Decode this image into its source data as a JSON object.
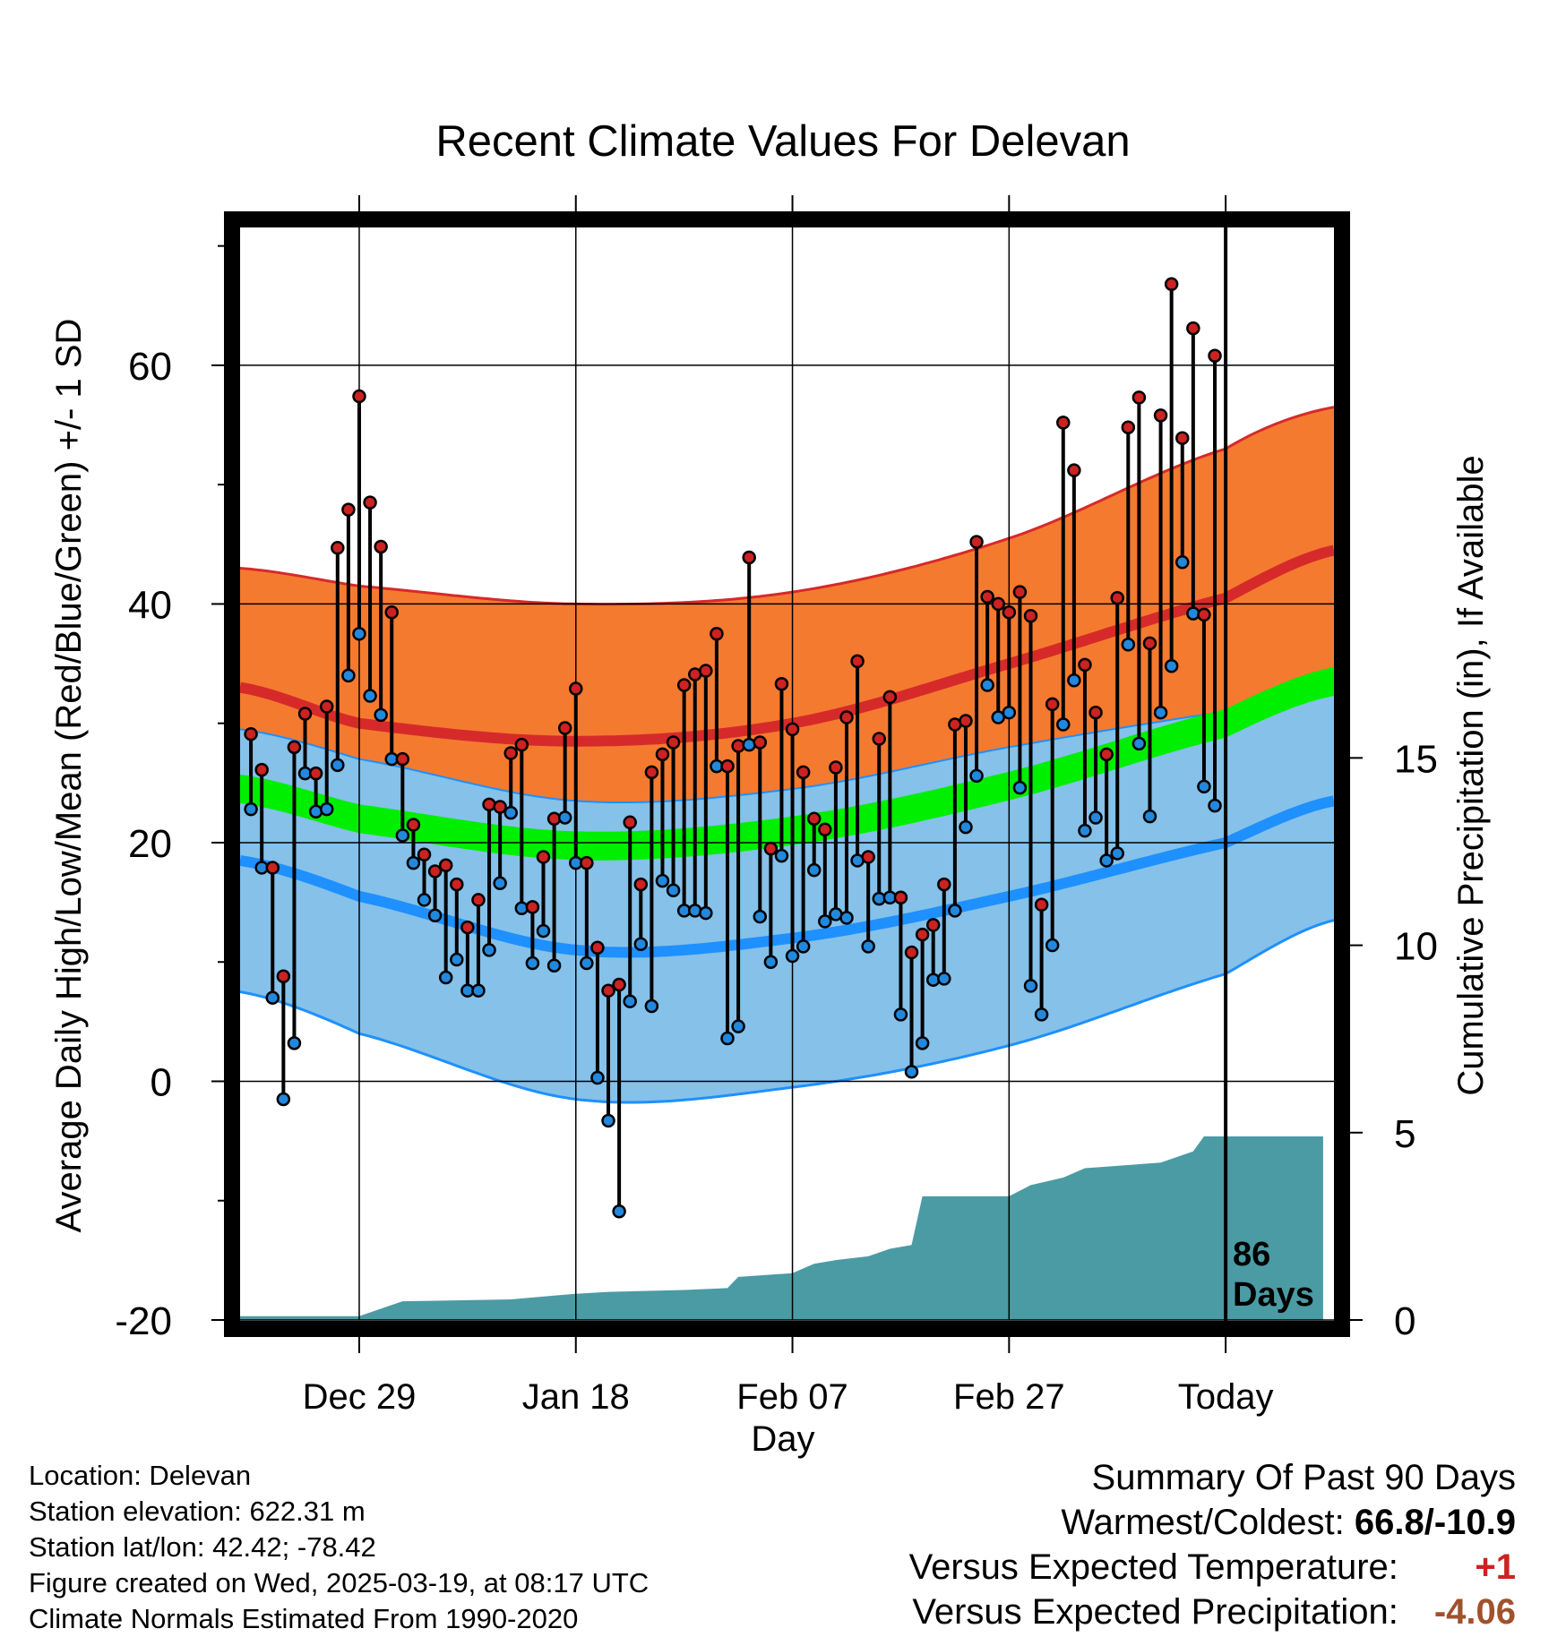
{
  "title": "Recent Climate Values For Delevan",
  "ylabel_left": "Average Daily High/Low/Mean (Red/Blue/Green) +/- 1 SD",
  "ylabel_right": "Cumulative Precipitation (in), If Available",
  "xlabel": "Day",
  "days_label": "86",
  "days_label2": "Days",
  "footer": {
    "location": "Location: Delevan",
    "elevation": "Station elevation: 622.31 m",
    "latlon": "Station lat/lon: 42.42; -78.42",
    "created": "Figure created on Wed, 2025-03-19, at 08:17 UTC",
    "normals": "Climate Normals Estimated From 1990-2020"
  },
  "summary": {
    "heading": "Summary Of Past 90 Days",
    "warmest_coldest_label": "Warmest/Coldest:",
    "warmest_coldest_value": "66.8/-10.9",
    "temp_label": "Versus Expected Temperature:",
    "temp_value": "+1",
    "precip_label": "Versus Expected Precipitation:",
    "precip_value": "-4.06"
  },
  "colors": {
    "high_band": "#f47a30",
    "high_line": "#d62a2a",
    "low_band": "#85c1e9",
    "low_line": "#1e90ff",
    "overlap_band": "#9b0f14",
    "mean_band": "#00ee00",
    "precip_fill": "#4a9ba4",
    "high_point": "#cc2222",
    "low_point": "#2288dd"
  },
  "chart_data": {
    "type": "line",
    "title": "Recent Climate Values For Delevan",
    "xlabel": "Day",
    "ylabel": "Average Daily High/Low/Mean (Red/Blue/Green) +/- 1 SD",
    "y2label": "Cumulative Precipitation (in), If Available",
    "x_ticks": [
      "Dec 29",
      "Jan 18",
      "Feb 07",
      "Feb 27",
      "Today"
    ],
    "x_tick_days": [
      10,
      30,
      50,
      70,
      90
    ],
    "x_range": [
      -1,
      100
    ],
    "ylim": [
      -20,
      72
    ],
    "y_ticks": [
      -20,
      0,
      20,
      40,
      60
    ],
    "y2lim": [
      0,
      29.3
    ],
    "y2_ticks": [
      0,
      5,
      10,
      15
    ],
    "grid": true,
    "normal_days": [
      -1,
      10,
      30,
      50,
      70,
      90,
      100
    ],
    "normal_high": [
      33,
      30,
      28.5,
      30,
      35,
      40.5,
      44.5
    ],
    "normal_high_sd": [
      10,
      11.5,
      11.5,
      11,
      10.5,
      12.5,
      12
    ],
    "normal_low": [
      18.5,
      15.5,
      11,
      12,
      15.5,
      20,
      23.5
    ],
    "normal_low_sd": [
      11,
      11.5,
      12.5,
      12.5,
      12.5,
      11,
      10
    ],
    "normal_mean": [
      24.5,
      22,
      19.75,
      21,
      24.75,
      30,
      33.5
    ],
    "normal_mean_sd": 1.2,
    "daily_high": [
      29.1,
      26.1,
      17.9,
      8.8,
      28,
      30.8,
      25.8,
      31.4,
      44.7,
      47.9,
      57.4,
      48.5,
      44.8,
      39.3,
      27.0,
      21.5,
      19.0,
      17.6,
      18.1,
      16.5,
      12.9,
      15.2,
      23.2,
      23.0,
      27.5,
      28.2,
      14.6,
      18.8,
      22.0,
      29.6,
      32.9,
      18.3,
      11.2,
      7.6,
      8.1,
      21.7,
      16.5,
      25.9,
      27.4,
      28.4,
      33.2,
      34.1,
      34.4,
      37.5,
      26.4,
      28.1,
      43.9,
      28.4,
      19.5,
      33.3,
      29.5,
      25.9,
      22.0,
      21.1,
      26.3,
      30.5,
      35.2,
      18.8,
      28.7,
      32.2,
      15.4,
      10.8,
      12.3,
      13.1,
      16.5,
      29.9,
      30.2,
      45.2,
      40.6,
      40.0,
      39.3,
      41.0,
      39.0,
      14.8,
      31.6,
      55.2,
      51.2,
      34.9,
      30.9,
      27.4,
      40.5,
      54.8,
      57.3,
      36.7,
      55.8,
      66.8,
      53.9,
      63.1,
      39.1,
      60.8
    ],
    "daily_low": [
      22.8,
      17.9,
      7.0,
      -1.5,
      3.2,
      25.8,
      22.6,
      22.8,
      26.5,
      34.0,
      37.5,
      32.3,
      30.7,
      27.0,
      20.6,
      18.3,
      15.2,
      13.9,
      8.7,
      10.2,
      7.6,
      7.6,
      11.0,
      16.6,
      22.5,
      14.5,
      9.9,
      12.6,
      9.7,
      22.1,
      18.3,
      9.9,
      0.3,
      -3.3,
      -10.9,
      6.7,
      11.5,
      6.3,
      16.8,
      16.0,
      14.3,
      14.3,
      14.1,
      26.4,
      3.6,
      4.6,
      28.2,
      13.8,
      10.0,
      18.9,
      10.5,
      11.3,
      17.7,
      13.4,
      14.0,
      13.7,
      18.5,
      11.3,
      15.3,
      15.4,
      5.6,
      0.8,
      3.2,
      8.5,
      8.6,
      14.3,
      21.3,
      25.6,
      33.2,
      30.5,
      30.9,
      24.6,
      8.0,
      5.6,
      11.4,
      29.9,
      33.6,
      21.0,
      22.1,
      18.5,
      19.1,
      36.6,
      28.3,
      22.2,
      30.9,
      34.8,
      43.5,
      39.2,
      24.7,
      23.1
    ],
    "precip_cumulative": [
      [
        -1,
        0.1
      ],
      [
        10,
        0.1
      ],
      [
        12,
        0.3
      ],
      [
        14,
        0.5
      ],
      [
        24,
        0.55
      ],
      [
        30,
        0.7
      ],
      [
        33,
        0.75
      ],
      [
        40,
        0.8
      ],
      [
        44,
        0.85
      ],
      [
        45,
        1.15
      ],
      [
        50,
        1.25
      ],
      [
        52,
        1.5
      ],
      [
        54,
        1.6
      ],
      [
        57,
        1.7
      ],
      [
        59,
        1.9
      ],
      [
        61,
        2.0
      ],
      [
        62,
        3.3
      ],
      [
        70,
        3.3
      ],
      [
        72,
        3.6
      ],
      [
        75,
        3.8
      ],
      [
        77,
        4.05
      ],
      [
        84,
        4.2
      ],
      [
        87,
        4.5
      ],
      [
        88,
        4.9
      ],
      [
        99,
        4.9
      ]
    ]
  }
}
